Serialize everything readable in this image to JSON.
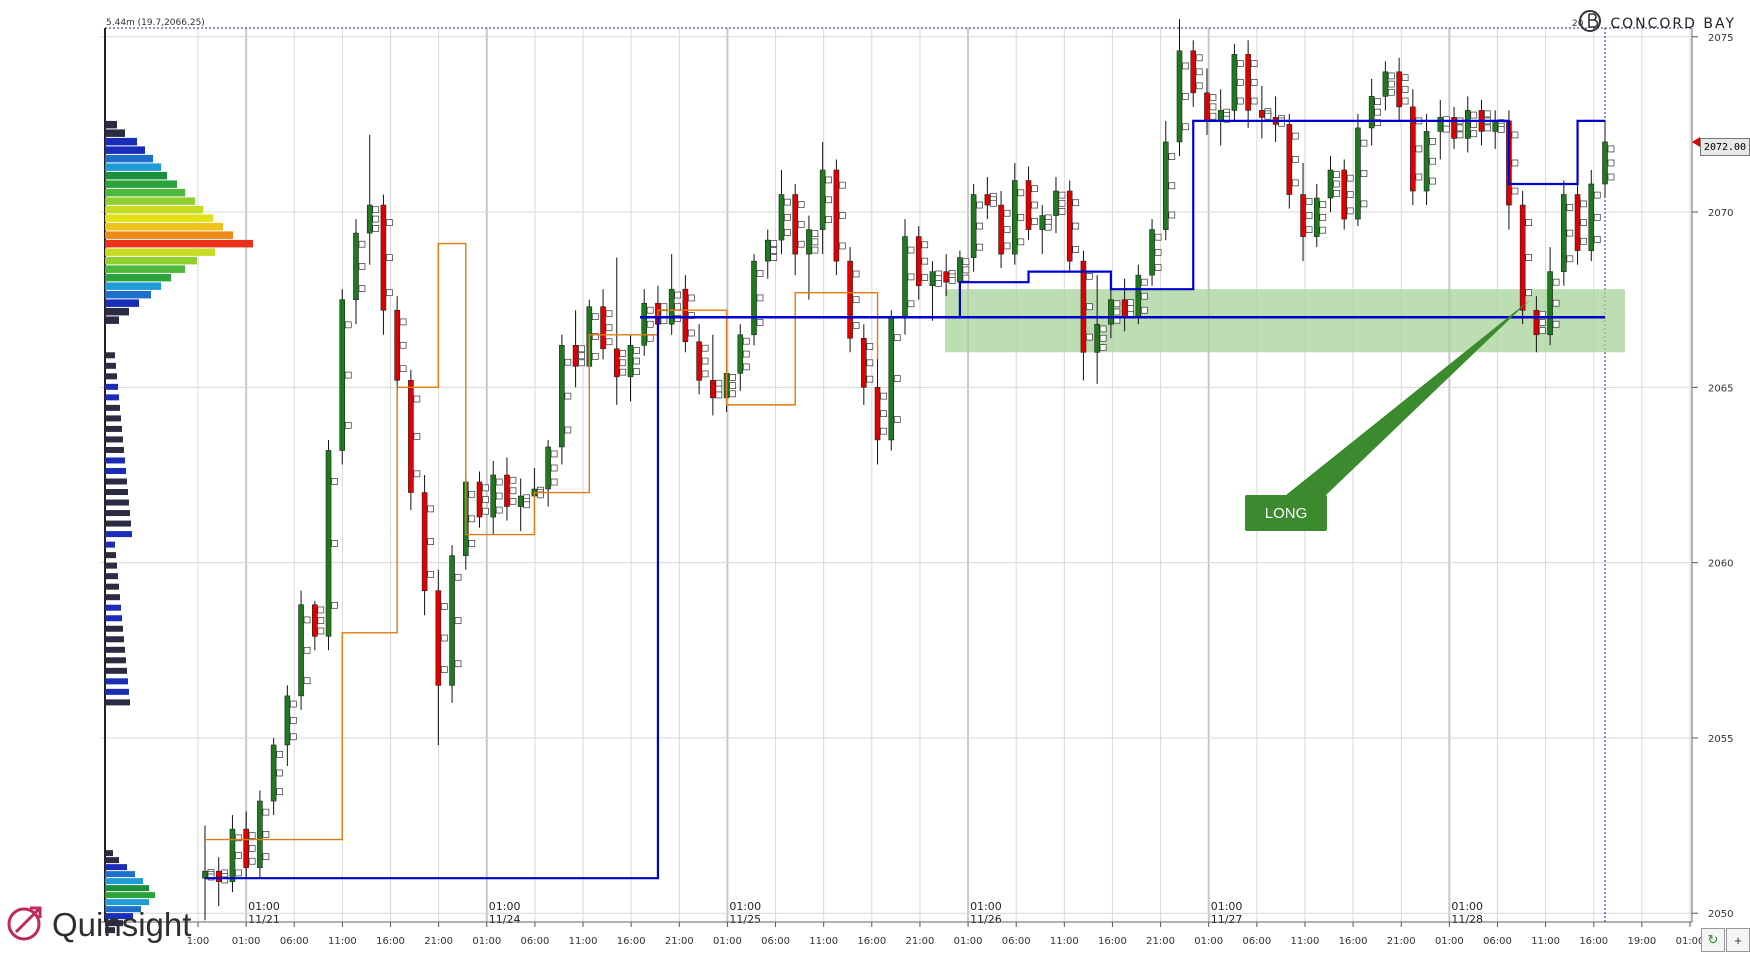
{
  "chart_data": {
    "type": "candlestick",
    "instrument_readout": "5.44m (19.7,2066.25)",
    "top_right_number": "20",
    "ylim": [
      2049.75,
      2075.25
    ],
    "y_ticks": [
      2050,
      2055,
      2060,
      2065,
      2070,
      2075
    ],
    "y_tick_labels": [
      "2050",
      "2055",
      "2060",
      "2065",
      "2070",
      "2075"
    ],
    "last_price": "2072.00",
    "x_time_labels": [
      "1:00",
      "01:00",
      "06:00",
      "11:00",
      "16:00",
      "21:00",
      "01:00",
      "06:00",
      "11:00",
      "16:00",
      "21:00",
      "01:00",
      "06:00",
      "11:00",
      "16:00",
      "21:00",
      "01:00",
      "06:00",
      "11:00",
      "16:00",
      "21:00",
      "01:00",
      "06:00",
      "11:00",
      "16:00",
      "21:00",
      "01:00",
      "06:00",
      "11:00",
      "16:00",
      "19:00",
      "01:00"
    ],
    "session_markers": [
      {
        "time": "01:00",
        "date": "11/21"
      },
      {
        "time": "01:00",
        "date": "11/24"
      },
      {
        "time": "01:00",
        "date": "11/25"
      },
      {
        "time": "01:00",
        "date": "11/26"
      },
      {
        "time": "01:00",
        "date": "11/27"
      },
      {
        "time": "01:00",
        "date": "11/28"
      }
    ],
    "candles_approx": [
      [
        2051.0,
        2052.5,
        2049.8,
        2051.2
      ],
      [
        2051.2,
        2051.6,
        2050.2,
        2050.9
      ],
      [
        2050.9,
        2052.8,
        2050.6,
        2052.4
      ],
      [
        2052.4,
        2052.9,
        2051.0,
        2051.3
      ],
      [
        2051.3,
        2053.5,
        2051.0,
        2053.2
      ],
      [
        2053.2,
        2055.0,
        2052.8,
        2054.8
      ],
      [
        2054.8,
        2056.5,
        2054.2,
        2056.2
      ],
      [
        2056.2,
        2059.2,
        2055.8,
        2058.8
      ],
      [
        2058.8,
        2058.9,
        2057.5,
        2057.9
      ],
      [
        2057.9,
        2063.5,
        2057.5,
        2063.2
      ],
      [
        2063.2,
        2067.8,
        2062.8,
        2067.5
      ],
      [
        2067.5,
        2069.8,
        2066.8,
        2069.4
      ],
      [
        2069.4,
        2072.2,
        2068.5,
        2070.2
      ],
      [
        2070.2,
        2070.5,
        2066.5,
        2067.2
      ],
      [
        2067.2,
        2067.6,
        2064.8,
        2065.2
      ],
      [
        2065.2,
        2065.5,
        2061.5,
        2062.0
      ],
      [
        2062.0,
        2062.5,
        2058.5,
        2059.2
      ],
      [
        2059.2,
        2059.8,
        2054.8,
        2056.5
      ],
      [
        2056.5,
        2060.5,
        2056.0,
        2060.2
      ],
      [
        2060.2,
        2062.6,
        2059.8,
        2062.3
      ],
      [
        2062.3,
        2062.6,
        2061.0,
        2061.3
      ],
      [
        2061.3,
        2062.9,
        2060.8,
        2062.5
      ],
      [
        2062.5,
        2063.0,
        2061.2,
        2061.6
      ],
      [
        2061.6,
        2062.4,
        2060.9,
        2061.9
      ],
      [
        2061.9,
        2062.7,
        2061.4,
        2062.1
      ],
      [
        2062.1,
        2063.5,
        2061.6,
        2063.3
      ],
      [
        2063.3,
        2066.5,
        2062.8,
        2066.2
      ],
      [
        2066.2,
        2067.2,
        2065.0,
        2065.6
      ],
      [
        2065.6,
        2067.5,
        2065.2,
        2067.3
      ],
      [
        2067.3,
        2067.8,
        2065.8,
        2066.1
      ],
      [
        2066.1,
        2068.7,
        2064.5,
        2065.3
      ],
      [
        2065.3,
        2066.5,
        2064.6,
        2066.2
      ],
      [
        2066.2,
        2067.8,
        2065.9,
        2067.4
      ],
      [
        2067.4,
        2067.9,
        2066.5,
        2066.8
      ],
      [
        2066.8,
        2068.8,
        2066.5,
        2067.8
      ],
      [
        2067.8,
        2068.2,
        2066.0,
        2066.3
      ],
      [
        2066.3,
        2066.8,
        2064.8,
        2065.2
      ],
      [
        2065.2,
        2066.5,
        2064.2,
        2064.7
      ],
      [
        2064.7,
        2065.8,
        2064.3,
        2065.4
      ],
      [
        2065.4,
        2066.8,
        2064.9,
        2066.5
      ],
      [
        2066.5,
        2068.8,
        2066.2,
        2068.6
      ],
      [
        2068.6,
        2069.5,
        2068.1,
        2069.2
      ],
      [
        2069.2,
        2071.2,
        2068.8,
        2070.5
      ],
      [
        2070.5,
        2070.8,
        2068.2,
        2068.8
      ],
      [
        2068.8,
        2069.9,
        2067.5,
        2069.5
      ],
      [
        2069.5,
        2072.0,
        2068.8,
        2071.2
      ],
      [
        2071.2,
        2071.5,
        2068.2,
        2068.6
      ],
      [
        2068.6,
        2069.0,
        2066.0,
        2066.4
      ],
      [
        2066.4,
        2066.8,
        2064.5,
        2065.0
      ],
      [
        2065.0,
        2066.2,
        2062.8,
        2063.5
      ],
      [
        2063.5,
        2067.2,
        2063.2,
        2067.0
      ],
      [
        2067.0,
        2069.8,
        2066.5,
        2069.3
      ],
      [
        2069.3,
        2069.6,
        2067.5,
        2067.9
      ],
      [
        2067.9,
        2068.6,
        2066.9,
        2068.3
      ],
      [
        2068.3,
        2068.8,
        2067.6,
        2068.0
      ],
      [
        2068.0,
        2068.9,
        2067.7,
        2068.7
      ],
      [
        2068.7,
        2070.8,
        2068.3,
        2070.5
      ],
      [
        2070.5,
        2071.0,
        2069.8,
        2070.2
      ],
      [
        2070.2,
        2070.6,
        2068.4,
        2068.8
      ],
      [
        2068.8,
        2071.4,
        2068.5,
        2070.9
      ],
      [
        2070.9,
        2071.3,
        2069.2,
        2069.5
      ],
      [
        2069.5,
        2070.2,
        2068.8,
        2069.9
      ],
      [
        2069.9,
        2071.0,
        2069.4,
        2070.6
      ],
      [
        2070.6,
        2070.9,
        2068.3,
        2068.6
      ],
      [
        2068.6,
        2068.9,
        2065.2,
        2066.0
      ],
      [
        2066.0,
        2068.2,
        2065.1,
        2066.8
      ],
      [
        2066.8,
        2067.9,
        2066.4,
        2067.5
      ],
      [
        2067.5,
        2068.1,
        2066.6,
        2067.0
      ],
      [
        2067.0,
        2068.5,
        2066.8,
        2068.2
      ],
      [
        2068.2,
        2069.8,
        2067.9,
        2069.5
      ],
      [
        2069.5,
        2072.6,
        2069.2,
        2072.0
      ],
      [
        2072.0,
        2075.5,
        2071.6,
        2074.6
      ],
      [
        2074.6,
        2074.9,
        2073.0,
        2073.4
      ],
      [
        2073.4,
        2074.1,
        2072.2,
        2072.6
      ],
      [
        2072.6,
        2073.5,
        2071.9,
        2072.9
      ],
      [
        2072.9,
        2074.8,
        2072.6,
        2074.5
      ],
      [
        2074.5,
        2074.9,
        2072.4,
        2072.9
      ],
      [
        2072.9,
        2073.6,
        2072.1,
        2072.7
      ],
      [
        2072.7,
        2073.3,
        2072.0,
        2072.5
      ],
      [
        2072.5,
        2072.8,
        2070.1,
        2070.5
      ],
      [
        2070.5,
        2071.4,
        2068.6,
        2069.3
      ],
      [
        2069.3,
        2070.8,
        2069.0,
        2070.4
      ],
      [
        2070.4,
        2071.6,
        2070.0,
        2071.2
      ],
      [
        2071.2,
        2071.5,
        2069.5,
        2069.8
      ],
      [
        2069.8,
        2072.8,
        2069.6,
        2072.4
      ],
      [
        2072.4,
        2073.8,
        2071.9,
        2073.3
      ],
      [
        2073.3,
        2074.3,
        2072.9,
        2074.0
      ],
      [
        2074.0,
        2074.4,
        2072.6,
        2073.0
      ],
      [
        2073.0,
        2073.5,
        2070.2,
        2070.6
      ],
      [
        2070.6,
        2072.8,
        2070.2,
        2072.3
      ],
      [
        2072.3,
        2073.2,
        2071.5,
        2072.7
      ],
      [
        2072.7,
        2073.0,
        2071.8,
        2072.1
      ],
      [
        2072.1,
        2073.3,
        2071.7,
        2072.9
      ],
      [
        2072.9,
        2073.2,
        2071.9,
        2072.3
      ],
      [
        2072.3,
        2072.9,
        2071.8,
        2072.6
      ],
      [
        2072.6,
        2072.9,
        2069.5,
        2070.2
      ],
      [
        2070.2,
        2070.6,
        2066.8,
        2067.2
      ],
      [
        2067.2,
        2067.6,
        2066.0,
        2066.5
      ],
      [
        2066.5,
        2069.0,
        2066.2,
        2068.3
      ],
      [
        2068.3,
        2070.9,
        2067.9,
        2070.5
      ],
      [
        2070.5,
        2070.8,
        2068.5,
        2068.9
      ],
      [
        2068.9,
        2071.2,
        2068.6,
        2070.8
      ],
      [
        2070.8,
        2072.6,
        2070.4,
        2072.0
      ]
    ],
    "horizontal_levels": [
      {
        "name": "blue-level",
        "price": 2067.0,
        "color": "#0000cc"
      }
    ],
    "highlight_zone": {
      "low": 2066.0,
      "high": 2067.8
    },
    "annotation": "LONG",
    "annotation_color": "#3b8a2d"
  },
  "branding": {
    "top_right": "CONCORD BAY",
    "footer": "Quinsight"
  },
  "colors": {
    "up_candle": "#1f7a1f",
    "down_candle": "#e00000",
    "neutral_candle": "#ffffff",
    "grid": "#d8d8d8",
    "blue_line": "#0000cc",
    "orange_line": "#e07a10",
    "zone": "#a7d39a"
  },
  "controls": {
    "refresh_icon": "refresh-icon",
    "plus_icon": "plus-icon"
  }
}
